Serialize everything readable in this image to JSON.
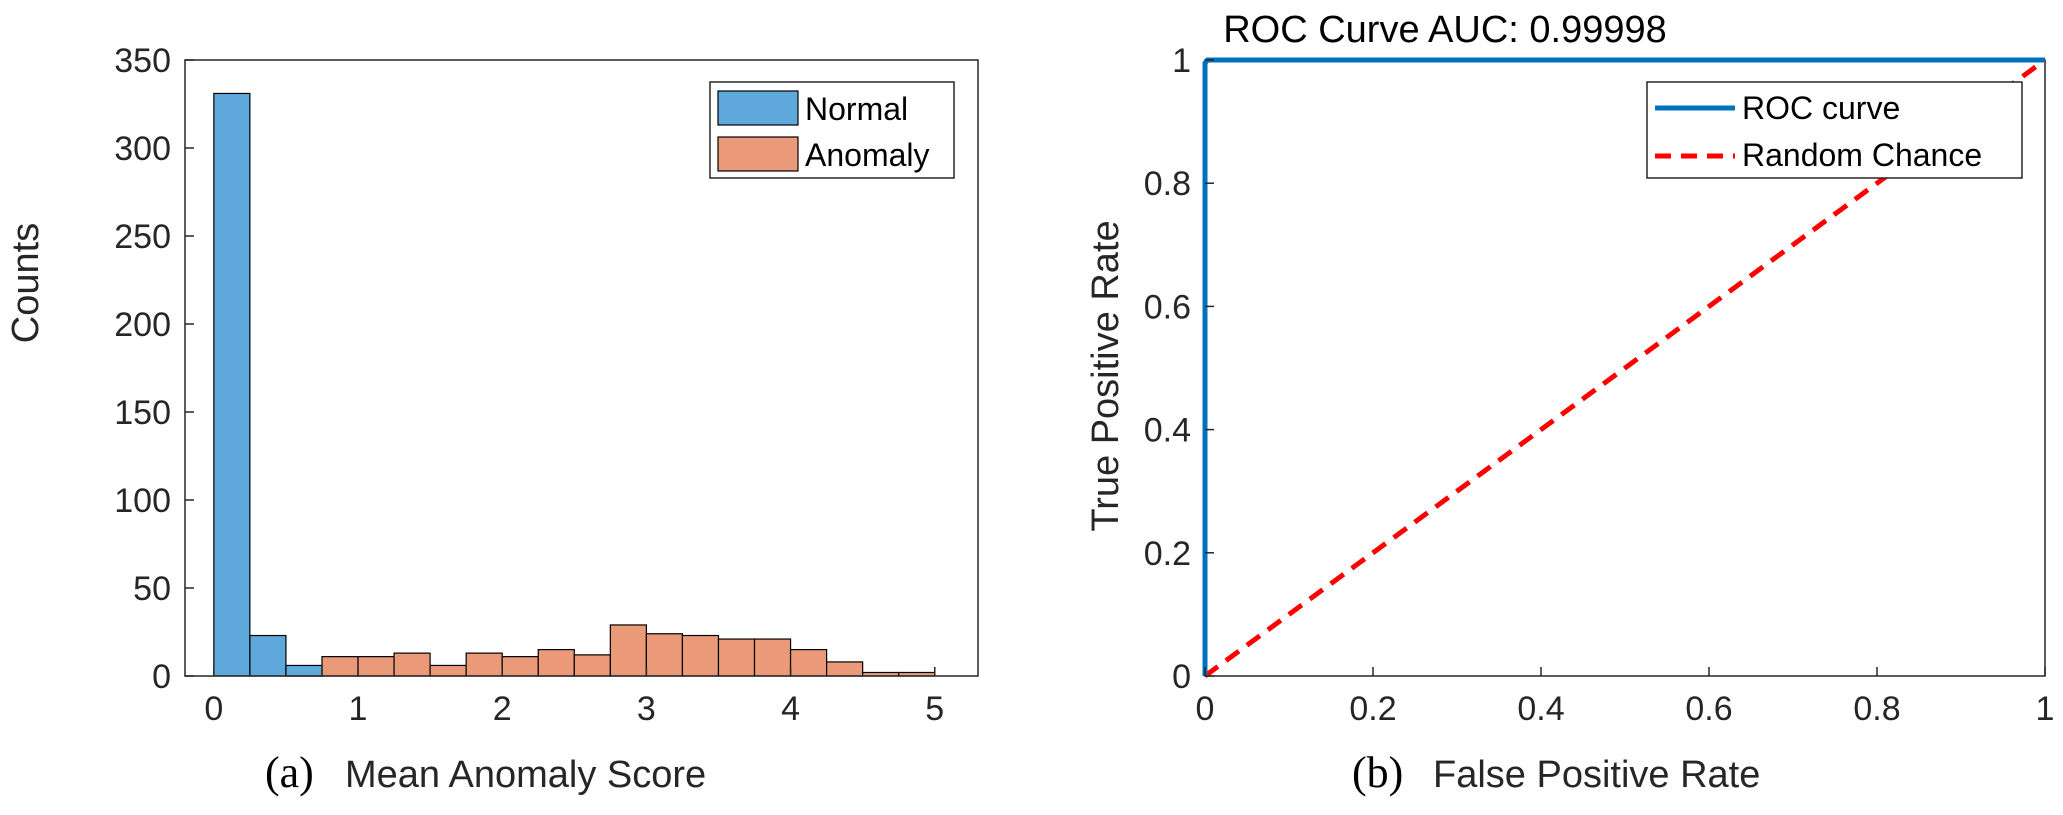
{
  "chart_data": [
    {
      "type": "bar",
      "subtype": "histogram",
      "caption_tag": "(a)",
      "xlabel": "Mean Anomaly Score",
      "ylabel": "Counts",
      "xlim": [
        -0.2,
        5.3
      ],
      "ylim": [
        0,
        350
      ],
      "xticks": [
        "0",
        "1",
        "2",
        "3",
        "4",
        "5"
      ],
      "yticks": [
        "0",
        "50",
        "100",
        "150",
        "200",
        "250",
        "300",
        "350"
      ],
      "bin_width": 0.25,
      "series": [
        {
          "name": "Normal",
          "color": "#5ea8dc",
          "bin_starts": [
            0,
            0.25,
            0.5
          ],
          "values": [
            331,
            23,
            6
          ]
        },
        {
          "name": "Anomaly",
          "color": "#ea9a78",
          "bin_starts": [
            0.5,
            0.75,
            1.0,
            1.25,
            1.5,
            1.75,
            2.0,
            2.25,
            2.5,
            2.75,
            3.0,
            3.25,
            3.5,
            3.75,
            4.0,
            4.25,
            4.5,
            4.75,
            5.0
          ],
          "values": [
            3,
            11,
            11,
            13,
            6,
            13,
            11,
            15,
            12,
            29,
            24,
            23,
            21,
            21,
            15,
            8,
            2,
            2,
            0
          ]
        }
      ],
      "legend": [
        "Normal",
        "Anomaly"
      ],
      "legend_position": "top-right"
    },
    {
      "type": "line",
      "caption_tag": "(b)",
      "title": "ROC Curve AUC: 0.99998",
      "xlabel": "False Positive Rate",
      "ylabel": "True Positive Rate",
      "xlim": [
        0,
        1
      ],
      "ylim": [
        0,
        1
      ],
      "xticks": [
        "0",
        "0.2",
        "0.4",
        "0.6",
        "0.8",
        "1"
      ],
      "yticks": [
        "0",
        "0.2",
        "0.4",
        "0.6",
        "0.8",
        "1"
      ],
      "series": [
        {
          "name": "ROC curve",
          "color": "#0072bd",
          "style": "solid",
          "x": [
            0,
            0,
            0.003,
            1
          ],
          "y": [
            0,
            0.995,
            1,
            1
          ]
        },
        {
          "name": "Random Chance",
          "color": "#ff0000",
          "style": "dashed",
          "x": [
            0,
            1
          ],
          "y": [
            0,
            1
          ]
        }
      ],
      "legend": [
        "ROC curve",
        "Random Chance"
      ],
      "legend_position": "top-right"
    }
  ]
}
